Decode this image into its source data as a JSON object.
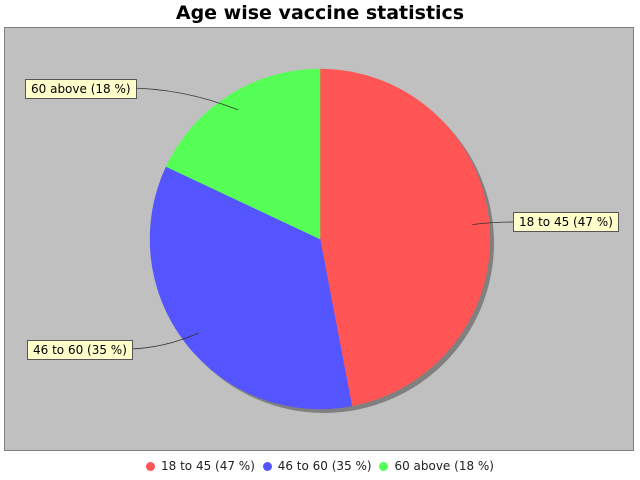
{
  "chart_data": {
    "type": "pie",
    "title": "Age wise vaccine statistics",
    "categories": [
      "18 to 45",
      "46 to 60",
      "60 above"
    ],
    "values": [
      47,
      35,
      18
    ],
    "labels": [
      "18 to 45 (47 %)",
      "46 to 60 (35 %)",
      "60 above (18 %)"
    ],
    "colors": [
      "#ff5555",
      "#5555ff",
      "#55ff55"
    ],
    "legend": "bottom"
  }
}
